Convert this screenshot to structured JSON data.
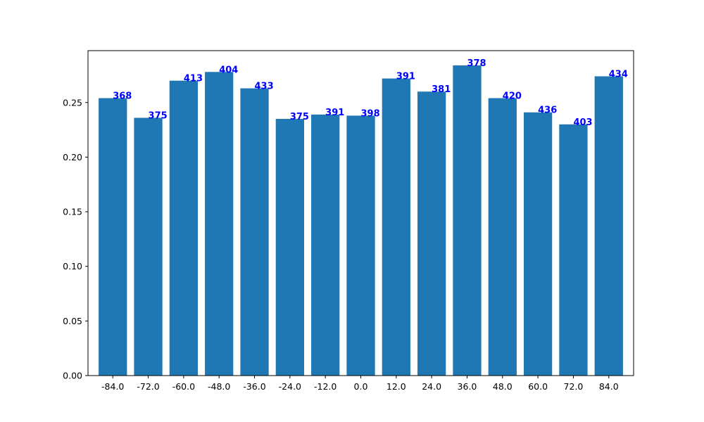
{
  "chart_data": {
    "type": "bar",
    "title": "",
    "xlabel": "",
    "ylabel": "",
    "categories": [
      "-84.0",
      "-72.0",
      "-60.0",
      "-48.0",
      "-36.0",
      "-24.0",
      "-12.0",
      "0.0",
      "12.0",
      "24.0",
      "36.0",
      "48.0",
      "60.0",
      "72.0",
      "84.0"
    ],
    "values": [
      0.254,
      0.236,
      0.27,
      0.278,
      0.263,
      0.235,
      0.239,
      0.238,
      0.272,
      0.26,
      0.284,
      0.254,
      0.241,
      0.23,
      0.274
    ],
    "bar_labels": [
      "368",
      "375",
      "413",
      "404",
      "433",
      "375",
      "391",
      "398",
      "391",
      "381",
      "378",
      "420",
      "436",
      "403",
      "434"
    ],
    "ylim": [
      0,
      0.2975
    ],
    "yticks": [
      "0.00",
      "0.05",
      "0.10",
      "0.15",
      "0.20",
      "0.25"
    ],
    "grid": false,
    "colors": {
      "bar": "#1f77b4",
      "bar_label": "#0000ff",
      "axis": "#000000"
    }
  }
}
